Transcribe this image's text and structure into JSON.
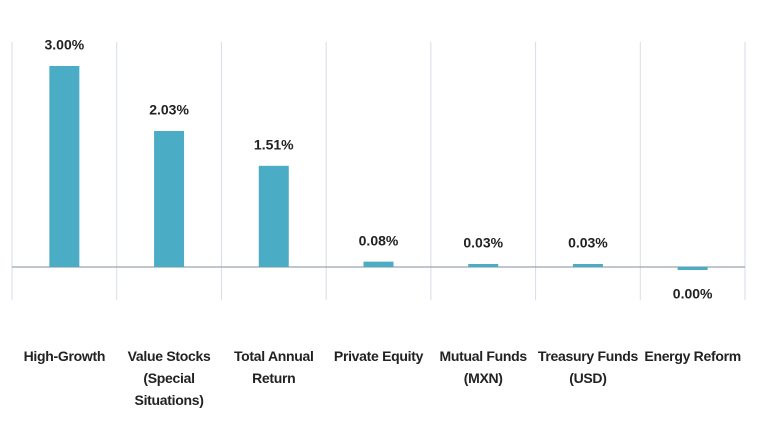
{
  "chart_data": {
    "type": "bar",
    "categories": [
      "High-Growth",
      "Value Stocks (Special Situations)",
      "Total Annual Return",
      "Private Equity",
      "Mutual Funds (MXN)",
      "Treasury Funds (USD)",
      "Energy Reform"
    ],
    "values": [
      3.0,
      2.03,
      1.51,
      0.08,
      0.03,
      0.03,
      0.0
    ],
    "value_labels": [
      "3.00%",
      "2.03%",
      "1.51%",
      "0.08%",
      "0.03%",
      "0.03%",
      "0.00%"
    ],
    "color": "#4bacc6"
  }
}
